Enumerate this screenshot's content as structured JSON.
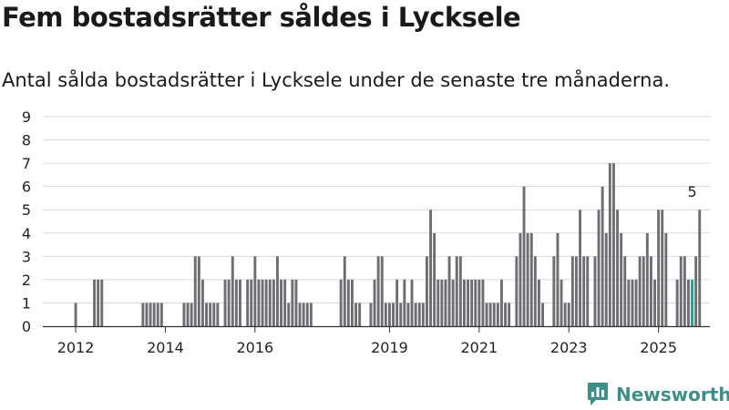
{
  "title": "Fem bostadsrätter såldes i Lycksele",
  "subtitle": "Antal sålda bostadsrätter i Lycksele under de senaste tre månaderna.",
  "brand": "Newsworthy",
  "colors": {
    "bar": "#6d6d72",
    "highlight": "#19a39a",
    "grid": "#d9d9d9",
    "axis": "#333333",
    "brand": "#3e8e8a"
  },
  "chart_data": {
    "type": "bar",
    "title": "Fem bostadsrätter såldes i Lycksele",
    "subtitle": "Antal sålda bostadsrätter i Lycksele under de senaste tre månaderna.",
    "xlabel": "",
    "ylabel": "",
    "ylim": [
      0,
      9
    ],
    "yticks": [
      "0",
      "1",
      "2",
      "3",
      "4",
      "5",
      "6",
      "7",
      "8",
      "9"
    ],
    "xticks": [
      {
        "label": "2012",
        "index": 8
      },
      {
        "label": "2014",
        "index": 32
      },
      {
        "label": "2016",
        "index": 56
      },
      {
        "label": "2019",
        "index": 92
      },
      {
        "label": "2021",
        "index": 116
      },
      {
        "label": "2023",
        "index": 140
      },
      {
        "label": "2025",
        "index": 164
      }
    ],
    "grid": true,
    "highlight": {
      "index": 173,
      "value": 5,
      "label": "5"
    },
    "values": [
      0,
      0,
      0,
      0,
      0,
      0,
      0,
      0,
      1,
      0,
      0,
      0,
      0,
      2,
      2,
      2,
      0,
      0,
      0,
      0,
      0,
      0,
      0,
      0,
      0,
      0,
      1,
      1,
      1,
      1,
      1,
      1,
      0,
      0,
      0,
      0,
      0,
      1,
      1,
      1,
      3,
      3,
      2,
      1,
      1,
      1,
      1,
      0,
      2,
      2,
      3,
      2,
      2,
      0,
      2,
      2,
      3,
      2,
      2,
      2,
      2,
      2,
      3,
      2,
      2,
      1,
      2,
      2,
      1,
      1,
      1,
      1,
      0,
      0,
      0,
      0,
      0,
      0,
      0,
      2,
      3,
      2,
      2,
      1,
      1,
      0,
      0,
      1,
      2,
      3,
      3,
      1,
      1,
      1,
      2,
      1,
      2,
      1,
      2,
      1,
      1,
      1,
      3,
      5,
      4,
      2,
      2,
      2,
      3,
      2,
      3,
      3,
      2,
      2,
      2,
      2,
      2,
      2,
      1,
      1,
      1,
      1,
      2,
      1,
      1,
      0,
      3,
      4,
      6,
      4,
      4,
      3,
      2,
      1,
      0,
      0,
      3,
      4,
      2,
      1,
      1,
      3,
      3,
      5,
      3,
      3,
      0,
      3,
      5,
      6,
      4,
      7,
      7,
      5,
      4,
      3,
      2,
      2,
      2,
      3,
      3,
      4,
      3,
      2,
      5,
      5,
      4,
      0,
      0,
      2,
      3,
      3,
      2,
      2,
      3,
      5
    ]
  }
}
